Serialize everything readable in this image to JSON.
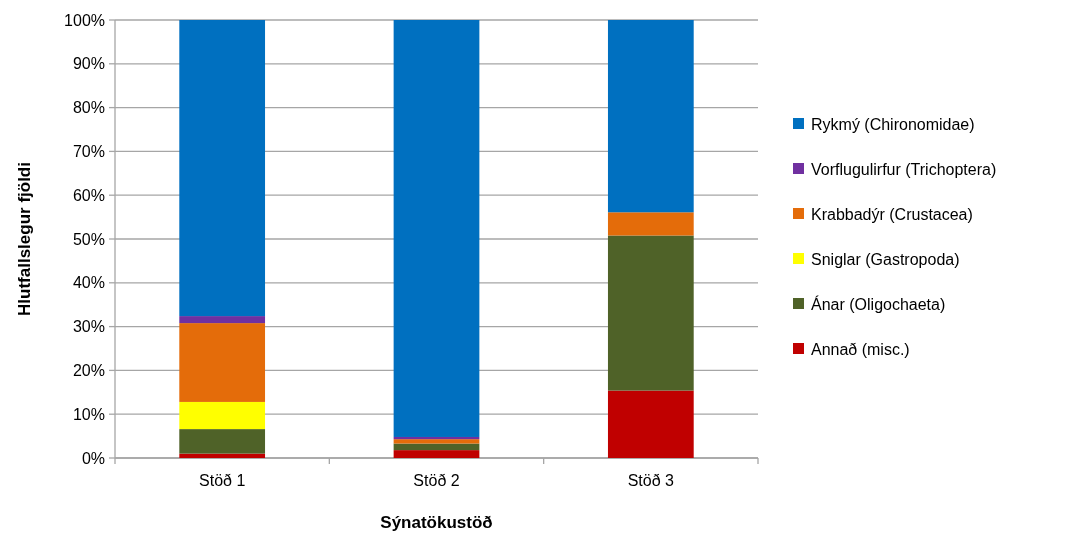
{
  "chart_data": {
    "type": "bar",
    "stacked": true,
    "categories": [
      "Stöð 1",
      "Stöð 2",
      "Stöð 3"
    ],
    "xlabel": "Sýnatökustöð",
    "ylabel": "Hlutfallslegur fjöldi",
    "ylim": [
      0,
      100
    ],
    "yticks": [
      {
        "value": 0,
        "label": "0%"
      },
      {
        "value": 10,
        "label": "10%"
      },
      {
        "value": 20,
        "label": "20%"
      },
      {
        "value": 30,
        "label": "30%"
      },
      {
        "value": 40,
        "label": "40%"
      },
      {
        "value": 50,
        "label": "50%"
      },
      {
        "value": 60,
        "label": "60%"
      },
      {
        "value": 70,
        "label": "70%"
      },
      {
        "value": 80,
        "label": "80%"
      },
      {
        "value": 90,
        "label": "90%"
      },
      {
        "value": 100,
        "label": "100%"
      }
    ],
    "grid": "y",
    "legend": "right",
    "series": [
      {
        "name": "Annað (misc.)",
        "color": "#c00000",
        "values": [
          1.0,
          1.8,
          15.4
        ]
      },
      {
        "name": "Ánar (Oligochaeta)",
        "color": "#4f6228",
        "values": [
          5.6,
          1.5,
          35.4
        ]
      },
      {
        "name": "Sniglar (Gastropoda)",
        "color": "#ffff00",
        "values": [
          6.2,
          0,
          0
        ]
      },
      {
        "name": "Krabbadýr (Crustacea)",
        "color": "#e46c0a",
        "values": [
          18.0,
          1.0,
          5.3
        ]
      },
      {
        "name": "Vorflugulirfur (Trichoptera)",
        "color": "#7030a0",
        "values": [
          1.6,
          0.5,
          0
        ]
      },
      {
        "name": "Rykmý (Chironomidae)",
        "color": "#0070c0",
        "values": [
          67.6,
          95.2,
          43.9
        ]
      }
    ]
  }
}
